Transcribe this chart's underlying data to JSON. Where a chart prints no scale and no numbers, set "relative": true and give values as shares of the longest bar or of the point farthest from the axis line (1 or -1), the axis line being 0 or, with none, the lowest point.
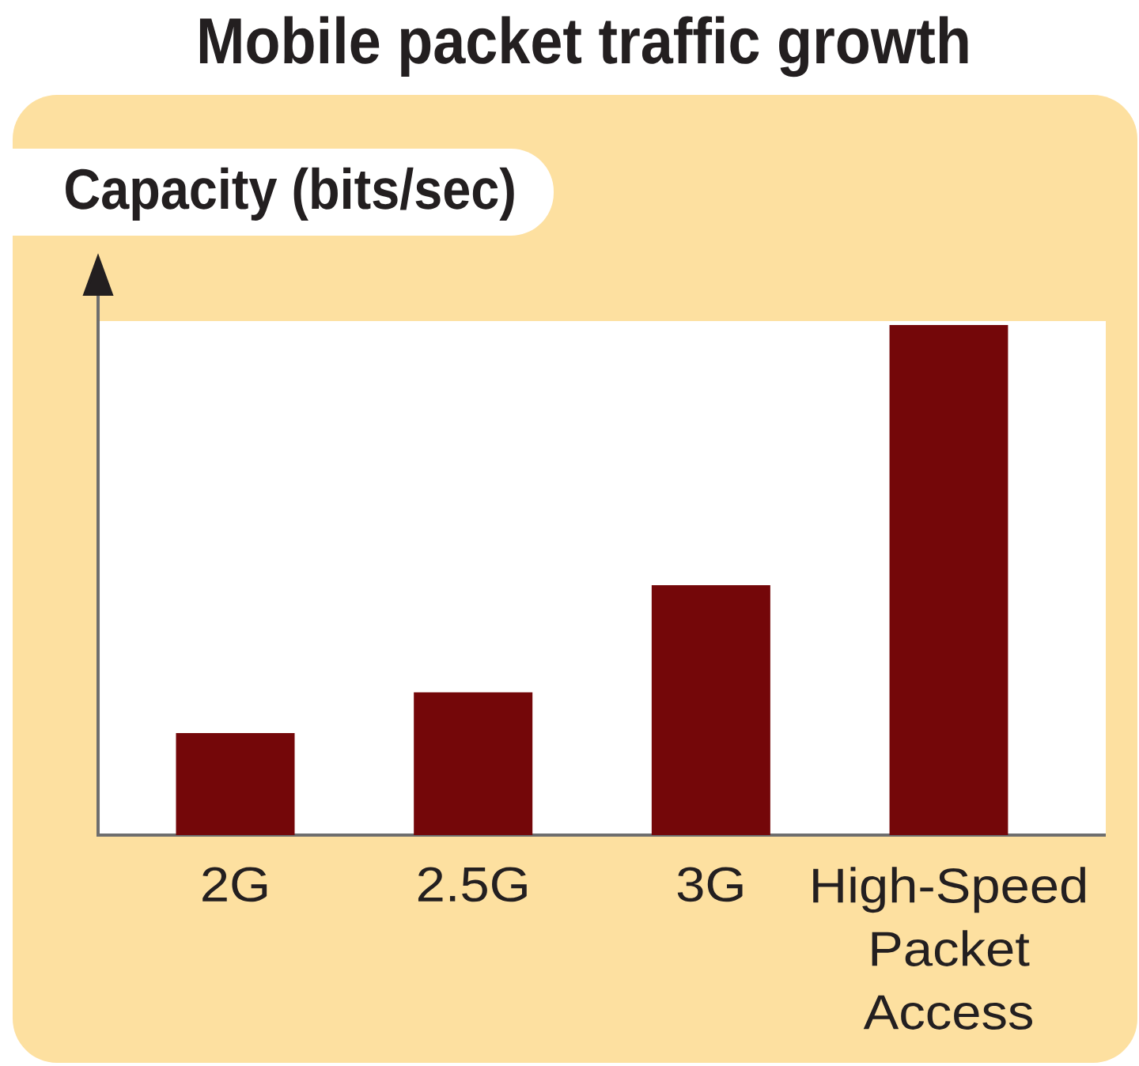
{
  "chart_data": {
    "type": "bar",
    "title": "Mobile packet traffic growth",
    "ylabel": "Capacity (bits/sec)",
    "categories": [
      "2G",
      "2.5G",
      "3G",
      "High-Speed Packet Access"
    ],
    "values": [
      0.2,
      0.28,
      0.49,
      1
    ],
    "color": "#740709",
    "relative": true
  }
}
